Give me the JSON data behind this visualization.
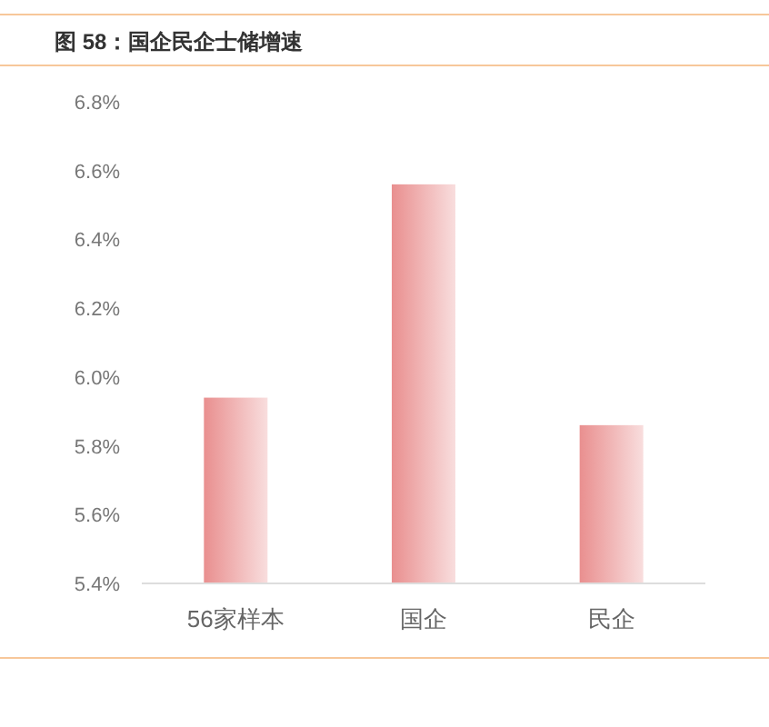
{
  "chart_data": {
    "type": "bar",
    "title": "图 58：国企民企士储增速",
    "categories": [
      "56家样本",
      "国企",
      "民企"
    ],
    "values": [
      5.94,
      6.56,
      5.86
    ],
    "color": "#e98f8f",
    "ylim": [
      5.4,
      6.8
    ],
    "yticks": [
      {
        "value": 5.4,
        "label": "5.4%"
      },
      {
        "value": 5.6,
        "label": "5.6%"
      },
      {
        "value": 5.8,
        "label": "5.8%"
      },
      {
        "value": 6.0,
        "label": "6.0%"
      },
      {
        "value": 6.2,
        "label": "6.2%"
      },
      {
        "value": 6.4,
        "label": "6.4%"
      },
      {
        "value": 6.6,
        "label": "6.6%"
      },
      {
        "value": 6.8,
        "label": "6.8%"
      }
    ],
    "grid": false
  }
}
